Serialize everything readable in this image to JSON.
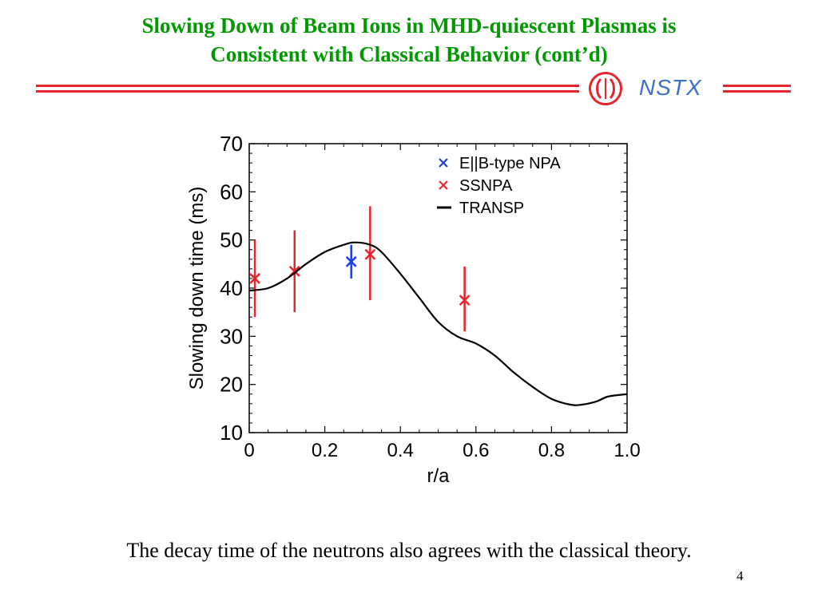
{
  "slide": {
    "title_line1": "Slowing Down of Beam Ions in MHD-quiescent Plasmas is",
    "title_line2": "Consistent with Classical Behavior (cont’d)",
    "logo_text": "NSTX",
    "caption": "The decay time of the neutrons also agrees with the classical theory.",
    "page_number": "4",
    "colors": {
      "title": "#009900",
      "rule": "#e8242c",
      "logo_text": "#3b6fd0"
    }
  },
  "chart_data": {
    "type": "line",
    "xlabel": "r/a",
    "ylabel": "Slowing down time (ms)",
    "xlim": [
      0,
      1.0
    ],
    "ylim": [
      10,
      70
    ],
    "xticks": [
      "0",
      "0.2",
      "0.4",
      "0.6",
      "0.8",
      "1.0"
    ],
    "yticks": [
      "10",
      "20",
      "30",
      "40",
      "50",
      "60",
      "70"
    ],
    "grid": false,
    "legend_position": "top-right",
    "series": [
      {
        "name": "E||B-type NPA",
        "type": "scatter",
        "color": "#1f3fe0",
        "marker": "x",
        "points": [
          {
            "x": 0.27,
            "y": 45.5,
            "err_low": 42.0,
            "err_high": 49.0
          }
        ]
      },
      {
        "name": "SSNPA",
        "type": "scatter",
        "color": "#e8242c",
        "marker": "x",
        "points": [
          {
            "x": 0.015,
            "y": 42.0,
            "err_low": 34.0,
            "err_high": 50.0
          },
          {
            "x": 0.12,
            "y": 43.5,
            "err_low": 35.0,
            "err_high": 52.0
          },
          {
            "x": 0.32,
            "y": 47.0,
            "err_low": 37.5,
            "err_high": 57.0
          },
          {
            "x": 0.57,
            "y": 37.5,
            "err_low": 31.0,
            "err_high": 44.5
          }
        ]
      },
      {
        "name": "TRANSP",
        "type": "line",
        "color": "#000000",
        "x": [
          0.0,
          0.05,
          0.1,
          0.15,
          0.2,
          0.25,
          0.28,
          0.32,
          0.35,
          0.4,
          0.45,
          0.5,
          0.55,
          0.6,
          0.65,
          0.7,
          0.75,
          0.8,
          0.85,
          0.88,
          0.92,
          0.95,
          1.0
        ],
        "y": [
          39.5,
          40.0,
          42.0,
          45.0,
          47.5,
          49.0,
          49.5,
          49.0,
          47.5,
          43.0,
          38.0,
          33.0,
          30.0,
          28.5,
          26.0,
          22.5,
          19.5,
          17.0,
          15.8,
          15.8,
          16.5,
          17.5,
          18.0
        ]
      }
    ]
  }
}
